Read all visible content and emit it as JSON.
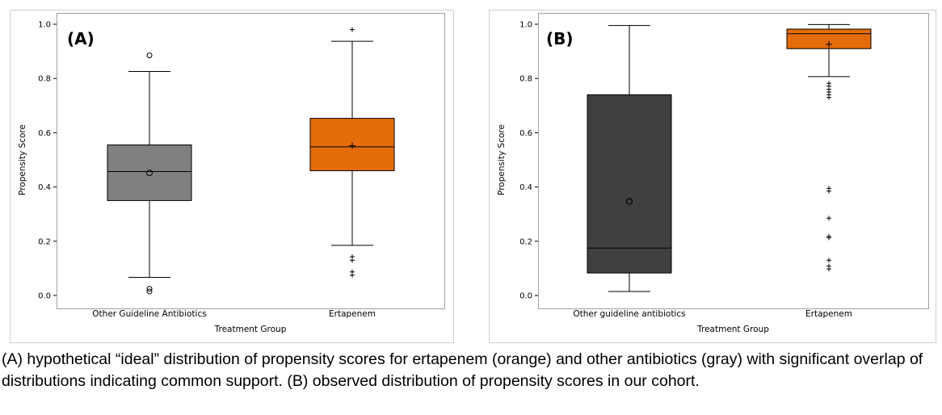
{
  "chart_data": [
    {
      "type": "box",
      "panel_label": "(A)",
      "xlabel": "Treatment Group",
      "ylabel": "Propensity Score",
      "ylim": [
        0.0,
        1.0
      ],
      "yticks": [
        "0.0",
        "0.2",
        "0.4",
        "0.6",
        "0.8",
        "1.0"
      ],
      "grid": false,
      "categories": [
        "Other Guideline Antibiotics",
        "Ertapenem"
      ],
      "boxes": [
        {
          "category": "Other Guideline Antibiotics",
          "color": "#808080",
          "whisker_low": 0.067,
          "q1": 0.35,
          "median": 0.457,
          "q3": 0.555,
          "whisker_high": 0.826,
          "mean": 0.452,
          "outliers_circle": [
            0.885,
            0.025,
            0.015
          ],
          "outliers_plus": []
        },
        {
          "category": "Ertapenem",
          "color": "#E46C0A",
          "whisker_low": 0.185,
          "q1": 0.46,
          "median": 0.548,
          "q3": 0.653,
          "whisker_high": 0.937,
          "mean": 0.552,
          "outliers_circle": [],
          "outliers_plus": [
            0.98,
            0.143,
            0.13,
            0.087,
            0.075
          ]
        }
      ]
    },
    {
      "type": "box",
      "panel_label": "(B)",
      "xlabel": "Treatment Group",
      "ylabel": "Propensity Score",
      "ylim": [
        0.0,
        1.0
      ],
      "yticks": [
        "0.0",
        "0.2",
        "0.4",
        "0.6",
        "0.8",
        "1.0"
      ],
      "grid": false,
      "categories": [
        "Other guideline antibiotics",
        "Ertapenem"
      ],
      "boxes": [
        {
          "category": "Other guideline antibiotics",
          "color": "#404040",
          "whisker_low": 0.015,
          "q1": 0.083,
          "median": 0.175,
          "q3": 0.74,
          "whisker_high": 0.995,
          "mean": 0.347,
          "outliers_circle": [],
          "outliers_plus": []
        },
        {
          "category": "Ertapenem",
          "color": "#E46C0A",
          "whisker_low": 0.807,
          "q1": 0.91,
          "median": 0.965,
          "q3": 0.982,
          "whisker_high": 0.999,
          "mean": 0.926,
          "outliers_circle": [],
          "outliers_plus": [
            0.782,
            0.772,
            0.76,
            0.75,
            0.74,
            0.73,
            0.395,
            0.385,
            0.285,
            0.218,
            0.213,
            0.13,
            0.108,
            0.098
          ]
        }
      ]
    }
  ],
  "caption": "(A) hypothetical “ideal” distribution of propensity scores for ertapenem (orange) and other antibiotics (gray) with significant overlap of distributions indicating common support. (B) observed distribution of propensity scores in our cohort."
}
